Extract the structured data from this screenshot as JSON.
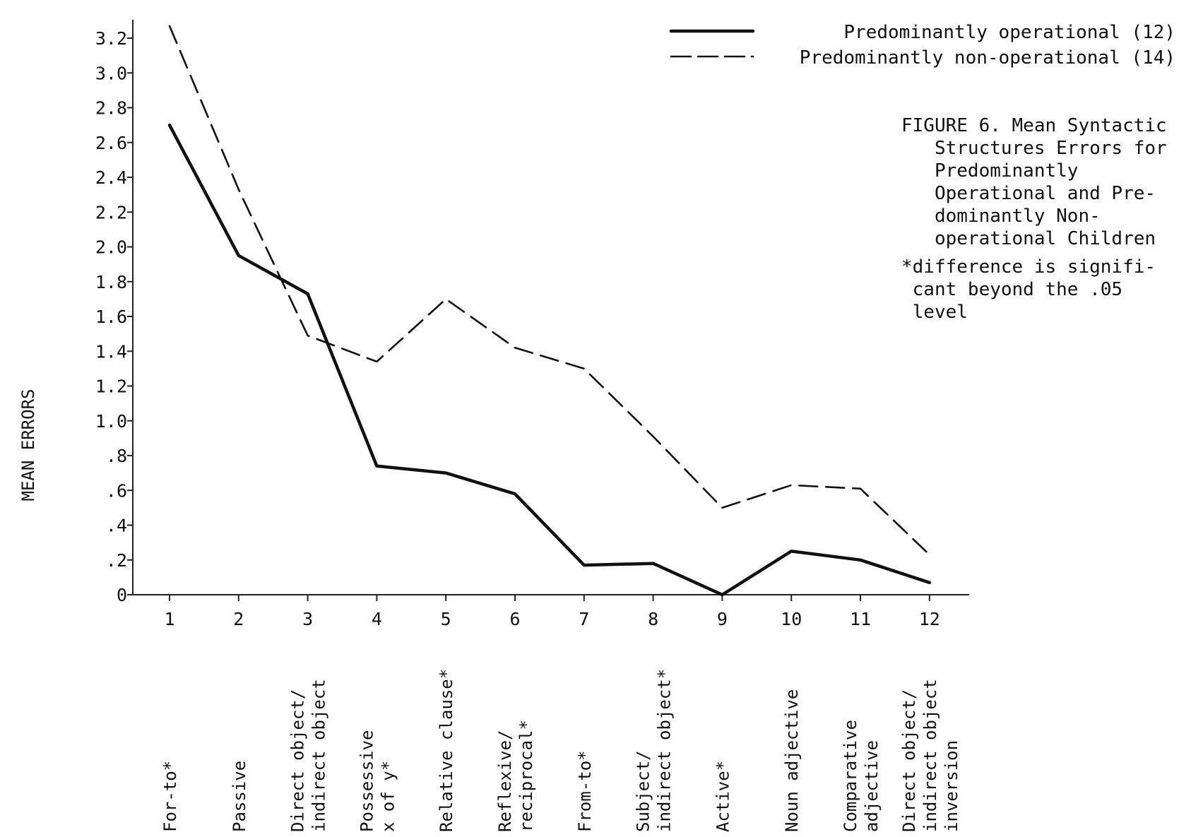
{
  "chart_data": {
    "type": "line",
    "title": "",
    "xlabel": "",
    "ylabel": "MEAN ERRORS",
    "ylim": [
      0,
      3.4
    ],
    "grid": false,
    "legend_position": "top-right",
    "x": [
      1,
      2,
      3,
      4,
      5,
      6,
      7,
      8,
      9,
      10,
      11,
      12
    ],
    "x_tick_labels": [
      "1",
      "2",
      "3",
      "4",
      "5",
      "6",
      "7",
      "8",
      "9",
      "10",
      "11",
      "12"
    ],
    "category_labels": [
      [
        "For-to*"
      ],
      [
        "Passive"
      ],
      [
        "Direct object/",
        "indirect object"
      ],
      [
        "Possessive",
        "x of y*"
      ],
      [
        "Relative clause*"
      ],
      [
        "Reflexive/",
        "reciprocal*"
      ],
      [
        "From-to*"
      ],
      [
        "Subject/",
        "indirect object*"
      ],
      [
        "Active*"
      ],
      [
        "Noun adjective"
      ],
      [
        "Comparative",
        "adjective"
      ],
      [
        "Direct object/",
        "indirect object",
        "inversion"
      ]
    ],
    "y_ticks": [
      0,
      0.2,
      0.4,
      0.6,
      0.8,
      1.0,
      1.2,
      1.4,
      1.6,
      1.8,
      2.0,
      2.2,
      2.4,
      2.6,
      2.8,
      3.0,
      3.2
    ],
    "y_tick_labels": [
      "0",
      ".2",
      ".4",
      ".6",
      ".8",
      "1.0",
      "1.2",
      "1.4",
      "1.6",
      "1.8",
      "2.0",
      "2.2",
      "2.4",
      "2.6",
      "2.8",
      "3.0",
      "3.2"
    ],
    "series": [
      {
        "name": "Predominantly operational (12)",
        "style": "solid",
        "values": [
          2.7,
          1.95,
          1.73,
          0.74,
          0.7,
          0.58,
          0.17,
          0.18,
          0.0,
          0.25,
          0.2,
          0.07
        ]
      },
      {
        "name": "Predominantly non-operational (14)",
        "style": "dashed",
        "values": [
          3.27,
          2.33,
          1.49,
          1.34,
          1.7,
          1.42,
          1.3,
          0.91,
          0.5,
          0.63,
          0.61,
          0.23
        ]
      }
    ],
    "caption": [
      "FIGURE 6. Mean Syntactic",
      "   Structures Errors for",
      "   Predominantly",
      "   Operational and Pre-",
      "   dominantly Non-",
      "   operational Children"
    ],
    "footnote": [
      "*difference is signifi-",
      " cant beyond the .05",
      " level"
    ]
  }
}
